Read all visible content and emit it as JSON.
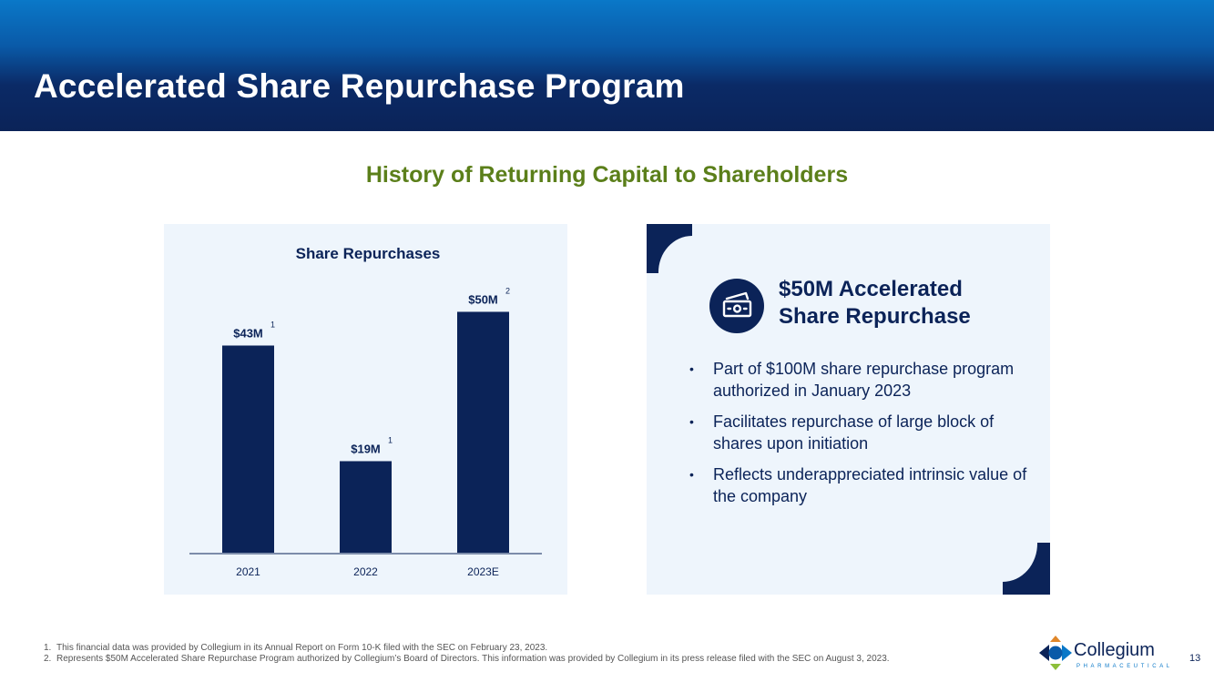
{
  "header": {
    "title": "Accelerated Share Repurchase Program"
  },
  "subtitle": "History of Returning Capital to Shareholders",
  "chart_data": {
    "type": "bar",
    "title": "Share Repurchases",
    "categories": [
      "2021",
      "2022",
      "2023E"
    ],
    "values": [
      43,
      19,
      50
    ],
    "data_labels": [
      "$43M",
      "$19M",
      "$50M"
    ],
    "footnote_refs": [
      "1",
      "1",
      "2"
    ],
    "unit": "$M",
    "ylim": [
      0,
      55
    ],
    "xlabel": "",
    "ylabel": "",
    "grid": false,
    "bar_color": "#0b2358"
  },
  "info": {
    "icon": "money-icon",
    "title_line1": "$50M Accelerated",
    "title_line2": "Share Repurchase",
    "bullets": [
      "Part of $100M share repurchase program authorized in January 2023",
      "Facilitates repurchase of large block of shares upon initiation",
      "Reflects underappreciated intrinsic value of the company"
    ]
  },
  "footnotes": [
    {
      "num": "1.",
      "text": "This financial data was provided by Collegium in its Annual Report on Form 10-K filed with the SEC on February 23, 2023."
    },
    {
      "num": "2.",
      "text": "Represents $50M Accelerated Share Repurchase Program authorized by Collegium’s Board of Directors. This information was provided by Collegium in its press release filed with the SEC on August 3, 2023."
    }
  ],
  "logo": {
    "name": "Collegium",
    "tagline": "PHARMACEUTICAL"
  },
  "page_number": "13",
  "colors": {
    "navy": "#0b2358",
    "green": "#5b7f1a",
    "panel": "#eef5fc",
    "blue": "#0a78c8"
  }
}
